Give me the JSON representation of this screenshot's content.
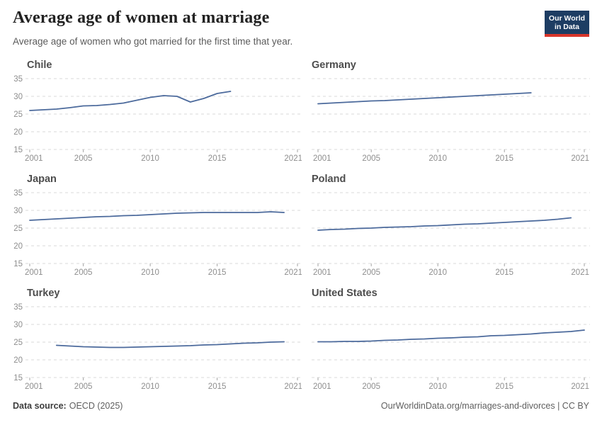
{
  "header": {
    "title": "Average age of women at marriage",
    "subtitle": "Average age of women who got married for the first time that year.",
    "logo": {
      "line1": "Our World",
      "line2": "in Data"
    }
  },
  "footer": {
    "source_label": "Data source:",
    "source_value": "OECD (2025)",
    "right": "OurWorldinData.org/marriages-and-divorces | CC BY"
  },
  "colors": {
    "line": "#4C6A9C",
    "grid": "#dadada",
    "tick": "#a6a6a6",
    "axis_text": "#8e8e8e",
    "logo_navy": "#1d3d63",
    "logo_red": "#d8352a"
  },
  "axis": {
    "x_min": 2001,
    "x_max": 2021,
    "y_min": 15,
    "y_max": 35,
    "x_ticks": [
      2001,
      2005,
      2010,
      2015,
      2021
    ],
    "y_ticks": [
      35,
      30,
      25,
      20,
      15
    ]
  },
  "chart_data": [
    {
      "type": "line",
      "title": "Chile",
      "xlabel": "",
      "ylabel": "",
      "grid": "dashed-horizontal",
      "legend": "none",
      "xlim": [
        2001,
        2021
      ],
      "ylim": [
        15,
        35
      ],
      "x": [
        2001,
        2002,
        2003,
        2004,
        2005,
        2006,
        2007,
        2008,
        2009,
        2010,
        2011,
        2012,
        2013,
        2014,
        2015,
        2016
      ],
      "values": [
        26.0,
        26.2,
        26.4,
        26.8,
        27.3,
        27.4,
        27.7,
        28.1,
        28.9,
        29.7,
        30.2,
        30.0,
        28.4,
        29.4,
        30.8,
        31.4
      ]
    },
    {
      "type": "line",
      "title": "Germany",
      "xlabel": "",
      "ylabel": "",
      "grid": "dashed-horizontal",
      "legend": "none",
      "xlim": [
        2001,
        2021
      ],
      "ylim": [
        15,
        35
      ],
      "x": [
        2001,
        2002,
        2003,
        2004,
        2005,
        2006,
        2007,
        2008,
        2009,
        2010,
        2011,
        2012,
        2013,
        2014,
        2015,
        2016,
        2017
      ],
      "values": [
        27.9,
        28.1,
        28.3,
        28.5,
        28.7,
        28.8,
        29.0,
        29.2,
        29.4,
        29.6,
        29.8,
        30.0,
        30.2,
        30.4,
        30.6,
        30.8,
        31.0
      ]
    },
    {
      "type": "line",
      "title": "Japan",
      "xlabel": "",
      "ylabel": "",
      "grid": "dashed-horizontal",
      "legend": "none",
      "xlim": [
        2001,
        2021
      ],
      "ylim": [
        15,
        35
      ],
      "x": [
        2001,
        2002,
        2003,
        2004,
        2005,
        2006,
        2007,
        2008,
        2009,
        2010,
        2011,
        2012,
        2013,
        2014,
        2015,
        2016,
        2017,
        2018,
        2019,
        2020
      ],
      "values": [
        27.2,
        27.4,
        27.6,
        27.8,
        28.0,
        28.2,
        28.3,
        28.5,
        28.6,
        28.8,
        29.0,
        29.2,
        29.3,
        29.4,
        29.4,
        29.4,
        29.4,
        29.4,
        29.6,
        29.4
      ]
    },
    {
      "type": "line",
      "title": "Poland",
      "xlabel": "",
      "ylabel": "",
      "grid": "dashed-horizontal",
      "legend": "none",
      "xlim": [
        2001,
        2021
      ],
      "ylim": [
        15,
        35
      ],
      "x": [
        2001,
        2002,
        2003,
        2004,
        2005,
        2006,
        2007,
        2008,
        2009,
        2010,
        2011,
        2012,
        2013,
        2014,
        2015,
        2016,
        2017,
        2018,
        2019,
        2020
      ],
      "values": [
        24.4,
        24.6,
        24.7,
        24.9,
        25.0,
        25.2,
        25.3,
        25.4,
        25.6,
        25.7,
        25.9,
        26.1,
        26.2,
        26.4,
        26.6,
        26.8,
        27.0,
        27.2,
        27.5,
        27.9
      ]
    },
    {
      "type": "line",
      "title": "Turkey",
      "xlabel": "",
      "ylabel": "",
      "grid": "dashed-horizontal",
      "legend": "none",
      "xlim": [
        2001,
        2021
      ],
      "ylim": [
        15,
        35
      ],
      "x": [
        2003,
        2004,
        2005,
        2006,
        2007,
        2008,
        2009,
        2010,
        2011,
        2012,
        2013,
        2014,
        2015,
        2016,
        2017,
        2018,
        2019,
        2020
      ],
      "values": [
        24.1,
        23.9,
        23.7,
        23.6,
        23.5,
        23.5,
        23.6,
        23.7,
        23.8,
        23.9,
        24.0,
        24.2,
        24.3,
        24.5,
        24.7,
        24.8,
        25.0,
        25.1
      ]
    },
    {
      "type": "line",
      "title": "United States",
      "xlabel": "",
      "ylabel": "",
      "grid": "dashed-horizontal",
      "legend": "none",
      "xlim": [
        2001,
        2021
      ],
      "ylim": [
        15,
        35
      ],
      "x": [
        2001,
        2002,
        2003,
        2004,
        2005,
        2006,
        2007,
        2008,
        2009,
        2010,
        2011,
        2012,
        2013,
        2014,
        2015,
        2016,
        2017,
        2018,
        2019,
        2020,
        2021
      ],
      "values": [
        25.1,
        25.1,
        25.2,
        25.2,
        25.3,
        25.5,
        25.6,
        25.8,
        25.9,
        26.1,
        26.2,
        26.4,
        26.5,
        26.8,
        26.9,
        27.1,
        27.3,
        27.6,
        27.8,
        28.0,
        28.4
      ]
    }
  ]
}
